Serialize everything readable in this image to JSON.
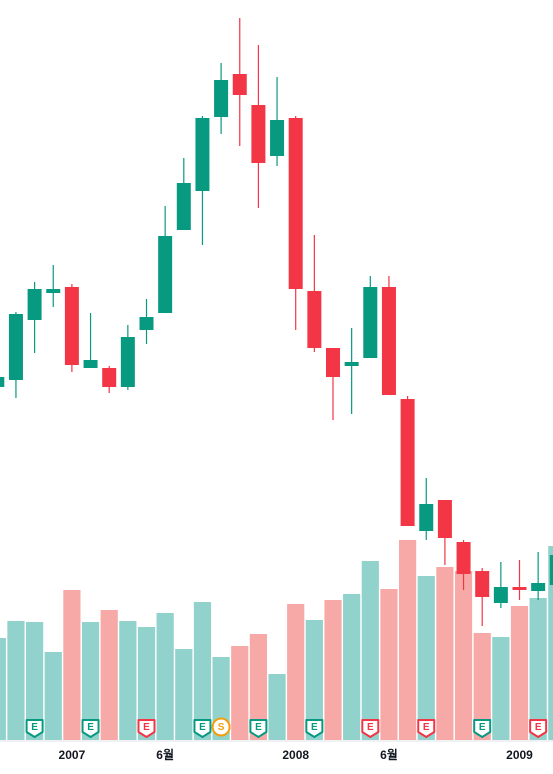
{
  "chart_data": {
    "type": "candlestick",
    "categories": [
      null,
      null,
      null,
      null,
      "2007",
      null,
      null,
      null,
      null,
      "6월",
      null,
      null,
      null,
      null,
      null,
      null,
      "2008",
      null,
      null,
      null,
      null,
      "6월",
      null,
      null,
      null,
      null,
      null,
      null,
      "2009",
      null,
      null
    ],
    "open": [
      373,
      380,
      440,
      467,
      473,
      392,
      392,
      373,
      430,
      447,
      530,
      569,
      643,
      686,
      655,
      604,
      642,
      469,
      412,
      394,
      402,
      473,
      361,
      229,
      260,
      218,
      189,
      157,
      173,
      169,
      175
    ],
    "high": [
      385,
      448,
      478,
      495,
      476,
      447,
      394,
      435,
      461,
      554,
      602,
      644,
      697,
      742,
      715,
      683,
      644,
      525,
      412,
      432,
      484,
      484,
      364,
      282,
      260,
      220,
      192,
      198,
      200,
      208,
      215
    ],
    "low": [
      370,
      362,
      407,
      453,
      388,
      392,
      367,
      370,
      416,
      447,
      530,
      515,
      626,
      614,
      552,
      594,
      430,
      408,
      340,
      346,
      402,
      365,
      234,
      220,
      195,
      170,
      134,
      152,
      160,
      160,
      170
    ],
    "close": [
      383,
      446,
      471,
      471,
      395,
      400,
      373,
      423,
      443,
      524,
      577,
      642,
      680,
      665,
      597,
      640,
      471,
      412,
      383,
      398,
      473,
      365,
      234,
      256,
      222,
      186,
      163,
      173,
      170,
      177,
      205
    ],
    "volume": [
      102,
      119,
      118,
      88,
      150,
      118,
      130,
      119,
      113,
      127,
      91,
      138,
      83,
      94,
      106,
      66,
      136,
      120,
      140,
      146,
      179,
      151,
      200,
      164,
      173,
      169,
      107,
      103,
      134,
      142,
      194
    ],
    "volume_colors": [
      "#92d2cc",
      "#92d2cc",
      "#92d2cc",
      "#92d2cc",
      "#f7a9a7",
      "#92d2cc",
      "#f7a9a7",
      "#92d2cc",
      "#92d2cc",
      "#92d2cc",
      "#92d2cc",
      "#92d2cc",
      "#92d2cc",
      "#f7a9a7",
      "#f7a9a7",
      "#92d2cc",
      "#f7a9a7",
      "#92d2cc",
      "#f7a9a7",
      "#92d2cc",
      "#92d2cc",
      "#f7a9a7",
      "#f7a9a7",
      "#92d2cc",
      "#f7a9a7",
      "#f7a9a7",
      "#f7a9a7",
      "#92d2cc",
      "#f7a9a7",
      "#92d2cc",
      "#92d2cc"
    ],
    "up_color": "#089981",
    "down_color": "#f23645",
    "ylim": [
      0,
      760
    ],
    "volume_lim": [
      0,
      740
    ],
    "event_labels": [
      null,
      null,
      "E",
      null,
      null,
      "E",
      null,
      null,
      "E",
      null,
      null,
      "E",
      "S",
      null,
      "E",
      null,
      null,
      "E",
      null,
      null,
      "E",
      null,
      null,
      "E",
      null,
      null,
      "E",
      null,
      null,
      "E",
      null
    ],
    "event_colors": [
      null,
      null,
      "#089981",
      null,
      null,
      "#089981",
      null,
      null,
      "#f23645",
      null,
      null,
      "#089981",
      "#f59e0b",
      null,
      "#089981",
      null,
      null,
      "#089981",
      null,
      null,
      "#f23645",
      null,
      null,
      "#f23645",
      null,
      null,
      "#089981",
      null,
      null,
      "#f23645",
      null
    ]
  }
}
